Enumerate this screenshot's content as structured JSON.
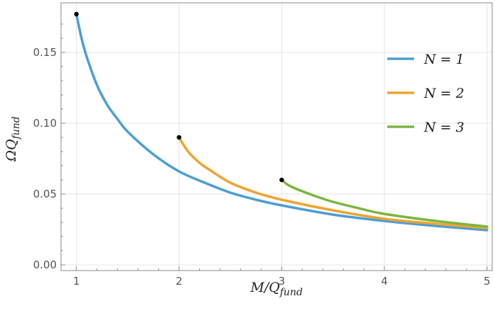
{
  "chart_data": {
    "type": "line",
    "xlabel": "M/Q",
    "xlabel_sub": "fund",
    "ylabel": "ΩQ",
    "ylabel_sub": "fund",
    "xlim": [
      0.85,
      5.05
    ],
    "ylim": [
      -0.004,
      0.185
    ],
    "x_ticks": [
      1,
      2,
      3,
      4,
      5
    ],
    "x_tick_labels": [
      "1",
      "2",
      "3",
      "4",
      "5"
    ],
    "y_ticks": [
      0.0,
      0.05,
      0.1,
      0.15
    ],
    "y_tick_labels": [
      "0.00",
      "0.05",
      "0.10",
      "0.15"
    ],
    "grid": true,
    "legend_position": "right",
    "legend_labels": [
      "N = 1",
      "N = 2",
      "N = 3"
    ],
    "series": [
      {
        "name": "N = 1",
        "color": "#4a9fd4",
        "x": [
          1.0,
          1.05,
          1.1,
          1.2,
          1.3,
          1.4,
          1.5,
          1.75,
          2.0,
          2.25,
          2.5,
          2.75,
          3.0,
          3.5,
          4.0,
          4.5,
          5.0
        ],
        "y": [
          0.177,
          0.16,
          0.147,
          0.127,
          0.113,
          0.103,
          0.094,
          0.078,
          0.066,
          0.058,
          0.051,
          0.046,
          0.042,
          0.0355,
          0.031,
          0.0275,
          0.0245
        ]
      },
      {
        "name": "N = 2",
        "color": "#f0a330",
        "x": [
          2.0,
          2.05,
          2.1,
          2.2,
          2.3,
          2.5,
          2.75,
          3.0,
          3.5,
          4.0,
          4.5,
          5.0
        ],
        "y": [
          0.09,
          0.084,
          0.079,
          0.072,
          0.067,
          0.058,
          0.051,
          0.046,
          0.0385,
          0.0325,
          0.029,
          0.026
        ]
      },
      {
        "name": "N = 3",
        "color": "#7ab640",
        "x": [
          3.0,
          3.05,
          3.1,
          3.2,
          3.35,
          3.5,
          3.75,
          4.0,
          4.5,
          5.0
        ],
        "y": [
          0.06,
          0.057,
          0.055,
          0.052,
          0.048,
          0.0445,
          0.04,
          0.036,
          0.031,
          0.027
        ]
      }
    ],
    "endpoints": [
      {
        "x": 1,
        "y": 0.177
      },
      {
        "x": 2,
        "y": 0.09
      },
      {
        "x": 3,
        "y": 0.06
      }
    ]
  }
}
